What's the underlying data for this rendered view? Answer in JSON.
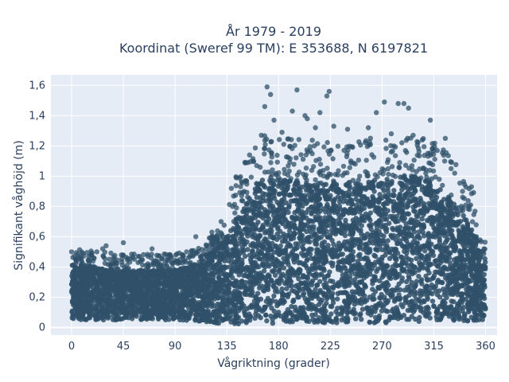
{
  "chart_data": {
    "type": "scatter",
    "title_line1": "År 1979 - 2019",
    "title_line2": "Koordinat (Sweref 99 TM): E 353688, N 6197821",
    "xlabel": "Vågriktning (grader)",
    "ylabel": "Signifikant våghöjd (m)",
    "xlim": [
      -18,
      370
    ],
    "ylim": [
      -0.05,
      1.67
    ],
    "xticks": [
      0,
      45,
      90,
      135,
      180,
      225,
      270,
      315,
      360
    ],
    "xtick_labels": [
      "0",
      "45",
      "90",
      "135",
      "180",
      "225",
      "270",
      "315",
      "360"
    ],
    "yticks": [
      0,
      0.2,
      0.4,
      0.6,
      0.8,
      1.0,
      1.2,
      1.4,
      1.6
    ],
    "ytick_labels": [
      "0",
      "0,2",
      "0,4",
      "0,6",
      "0,8",
      "1",
      "1,2",
      "1,4",
      "1,6"
    ],
    "grid": true,
    "marker_color": "#2f5068",
    "plot_bg": "#e5ecf6",
    "envelope": {
      "x": [
        0,
        20,
        45,
        70,
        90,
        110,
        125,
        135,
        150,
        160,
        170,
        180,
        200,
        225,
        250,
        270,
        290,
        300,
        315,
        330,
        345,
        360
      ],
      "min": [
        0.05,
        0.05,
        0.05,
        0.05,
        0.05,
        0.04,
        0.03,
        0.02,
        0.02,
        0.02,
        0.02,
        0.03,
        0.03,
        0.03,
        0.03,
        0.03,
        0.03,
        0.04,
        0.04,
        0.04,
        0.04,
        0.05
      ],
      "dense_max": [
        0.42,
        0.4,
        0.38,
        0.38,
        0.38,
        0.42,
        0.52,
        0.62,
        0.8,
        0.95,
        1.0,
        0.98,
        0.96,
        0.95,
        0.96,
        0.98,
        1.0,
        1.0,
        0.95,
        0.85,
        0.7,
        0.45
      ]
    },
    "outliers": [
      [
        0,
        0.5
      ],
      [
        15,
        0.47
      ],
      [
        22,
        0.5
      ],
      [
        27,
        0.52
      ],
      [
        30,
        0.54
      ],
      [
        45,
        0.56
      ],
      [
        58,
        0.47
      ],
      [
        70,
        0.52
      ],
      [
        85,
        0.48
      ],
      [
        100,
        0.5
      ],
      [
        108,
        0.6
      ],
      [
        122,
        0.63
      ],
      [
        130,
        0.7
      ],
      [
        140,
        0.8
      ],
      [
        150,
        0.9
      ],
      [
        158,
        1.1
      ],
      [
        165,
        1.27
      ],
      [
        168,
        1.46
      ],
      [
        170,
        1.59
      ],
      [
        173,
        1.54
      ],
      [
        176,
        1.37
      ],
      [
        183,
        1.29
      ],
      [
        192,
        1.43
      ],
      [
        196,
        1.57
      ],
      [
        203,
        1.4
      ],
      [
        205,
        1.38
      ],
      [
        212,
        1.32
      ],
      [
        216,
        1.42
      ],
      [
        222,
        1.53
      ],
      [
        224,
        1.56
      ],
      [
        228,
        1.33
      ],
      [
        240,
        1.31
      ],
      [
        258,
        1.32
      ],
      [
        265,
        1.42
      ],
      [
        272,
        1.49
      ],
      [
        278,
        1.28
      ],
      [
        284,
        1.48
      ],
      [
        289,
        1.48
      ],
      [
        293,
        1.45
      ],
      [
        297,
        1.27
      ],
      [
        305,
        1.24
      ],
      [
        312,
        1.37
      ],
      [
        318,
        1.17
      ],
      [
        325,
        1.25
      ],
      [
        330,
        1.05
      ],
      [
        340,
        0.9
      ],
      [
        346,
        0.78
      ],
      [
        352,
        0.6
      ],
      [
        358,
        0.5
      ]
    ]
  }
}
